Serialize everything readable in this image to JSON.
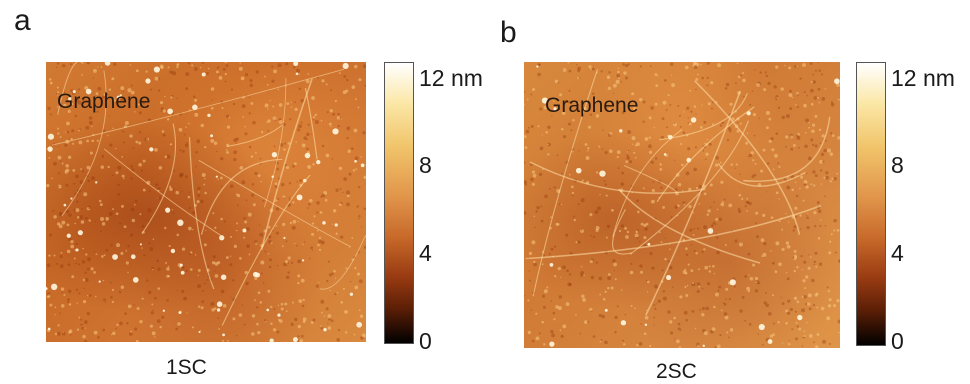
{
  "panel_a": {
    "letter": "a",
    "image_label": "Graphene",
    "caption": "1SC",
    "colorbar_ticks": [
      "12 nm",
      "8",
      "4",
      "0"
    ]
  },
  "panel_b": {
    "letter": "b",
    "image_label": "Graphene",
    "caption": "2SC",
    "colorbar_ticks": [
      "12 nm",
      "8",
      "4",
      "0"
    ]
  },
  "colormap": {
    "low": "#000000",
    "mid": "#c86a2a",
    "high": "#ffffff"
  }
}
